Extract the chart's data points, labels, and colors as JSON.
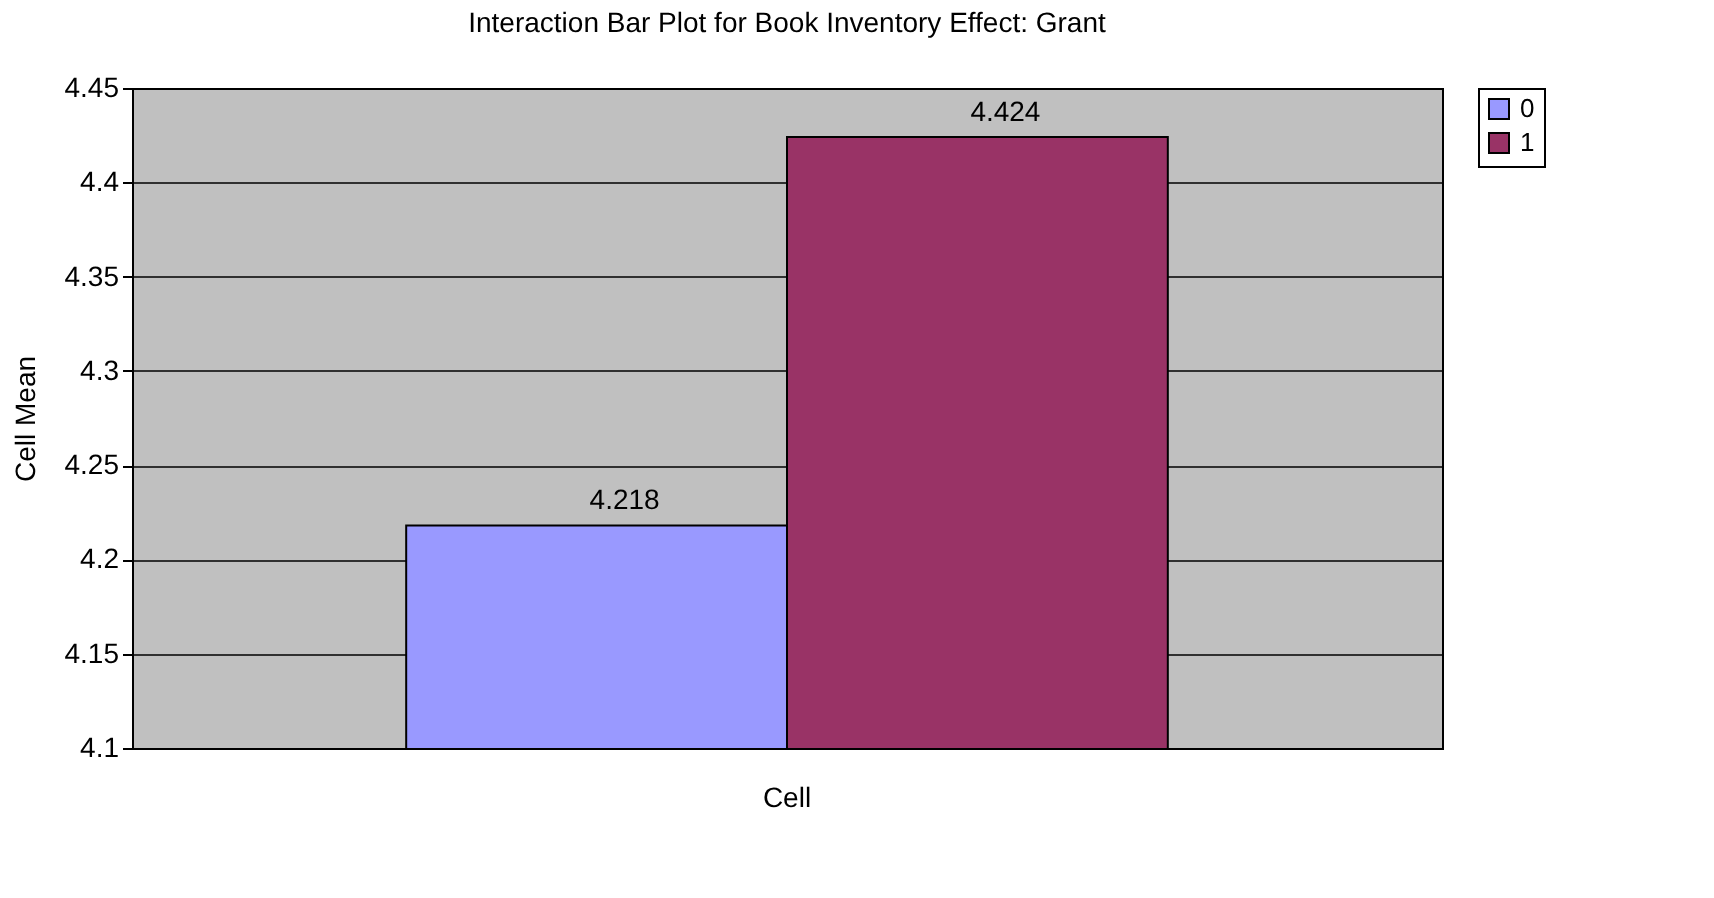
{
  "chart_data": {
    "type": "bar",
    "title": "Interaction Bar Plot for Book Inventory  Effect: Grant",
    "ylabel": "Cell Mean",
    "categories": [
      "Cell"
    ],
    "series": [
      {
        "name": "0",
        "color": "#9999ff",
        "values": [
          4.218
        ]
      },
      {
        "name": "1",
        "color": "#993366",
        "values": [
          4.424
        ]
      }
    ],
    "ylim": [
      4.1,
      4.45
    ],
    "yticks": [
      4.1,
      4.15,
      4.2,
      4.25,
      4.3,
      4.35,
      4.4,
      4.45
    ],
    "grid": "y",
    "legend": "right",
    "data_labels": true
  }
}
